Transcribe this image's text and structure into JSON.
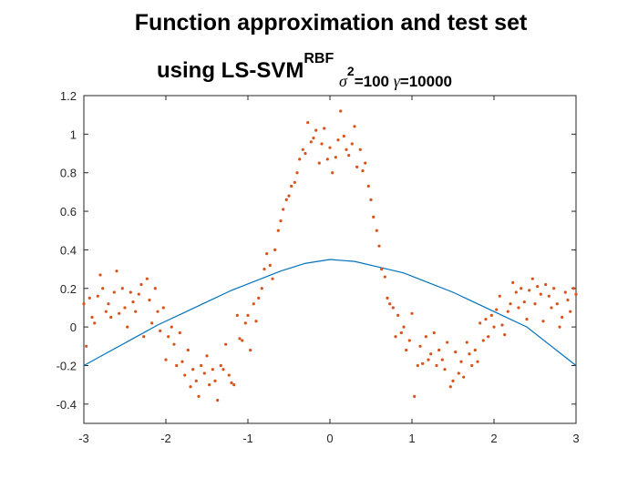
{
  "chart_data": {
    "type": "scatter",
    "title": {
      "line1": "Function approximation and test set",
      "line2_prefix": "using LS-SVM",
      "superscript": "RBF",
      "subscript_sigma": "σ",
      "subscript_sigma_exp": "2",
      "line2_suffix_a": "=100 ",
      "gamma": "γ",
      "line2_suffix_b": "=10000"
    },
    "xlabel": "",
    "ylabel": "",
    "xlim": [
      -3,
      3
    ],
    "ylim": [
      -0.5,
      1.2
    ],
    "x_ticks": [
      -3,
      -2,
      -1,
      0,
      1,
      2,
      3
    ],
    "x_tick_labels": [
      "-3",
      "-2",
      "-1",
      "0",
      "1",
      "2",
      "3"
    ],
    "y_ticks": [
      -0.4,
      -0.2,
      0,
      0.2,
      0.4,
      0.6,
      0.8,
      1,
      1.2
    ],
    "y_tick_labels": [
      "-0.4",
      "-0.2",
      "0",
      "0.2",
      "0.4",
      "0.6",
      "0.8",
      "1",
      "1.2"
    ],
    "grid": false,
    "colors": {
      "fit_line": "#0072BD",
      "points": "#D95319",
      "axes": "#262626"
    },
    "series": [
      {
        "kind": "line",
        "x": [
          -3,
          -2.7,
          -2.4,
          -2.1,
          -1.8,
          -1.5,
          -1.2,
          -0.9,
          -0.6,
          -0.3,
          0,
          0.3,
          0.6,
          0.9,
          1.2,
          1.5,
          1.8,
          2.1,
          2.4,
          2.7,
          3
        ],
        "y": [
          -0.2,
          -0.13,
          -0.06,
          0.01,
          0.07,
          0.13,
          0.19,
          0.24,
          0.29,
          0.33,
          0.35,
          0.34,
          0.31,
          0.28,
          0.23,
          0.18,
          0.12,
          0.06,
          0.0,
          -0.1,
          -0.2
        ]
      },
      {
        "kind": "scatter",
        "x": [
          -3.0,
          -2.97,
          -2.93,
          -2.9,
          -2.87,
          -2.83,
          -2.8,
          -2.77,
          -2.73,
          -2.7,
          -2.67,
          -2.63,
          -2.6,
          -2.57,
          -2.53,
          -2.5,
          -2.47,
          -2.43,
          -2.4,
          -2.37,
          -2.33,
          -2.3,
          -2.27,
          -2.23,
          -2.2,
          -2.17,
          -2.13,
          -2.1,
          -2.07,
          -2.03,
          -2.0,
          -1.97,
          -1.93,
          -1.9,
          -1.87,
          -1.83,
          -1.8,
          -1.77,
          -1.73,
          -1.7,
          -1.67,
          -1.63,
          -1.6,
          -1.57,
          -1.53,
          -1.5,
          -1.47,
          -1.43,
          -1.4,
          -1.37,
          -1.33,
          -1.3,
          -1.27,
          -1.23,
          -1.2,
          -1.17,
          -1.13,
          -1.1,
          -1.07,
          -1.03,
          -1.0,
          -0.97,
          -0.93,
          -0.9,
          -0.87,
          -0.83,
          -0.8,
          -0.77,
          -0.73,
          -0.7,
          -0.67,
          -0.63,
          -0.6,
          -0.57,
          -0.53,
          -0.5,
          -0.47,
          -0.43,
          -0.4,
          -0.37,
          -0.33,
          -0.3,
          -0.27,
          -0.23,
          -0.2,
          -0.17,
          -0.13,
          -0.1,
          -0.07,
          -0.03,
          0.0,
          0.03,
          0.07,
          0.1,
          0.13,
          0.17,
          0.2,
          0.23,
          0.27,
          0.3,
          0.33,
          0.37,
          0.4,
          0.43,
          0.47,
          0.5,
          0.53,
          0.57,
          0.6,
          0.63,
          0.67,
          0.7,
          0.73,
          0.77,
          0.8,
          0.83,
          0.87,
          0.9,
          0.93,
          0.97,
          1.0,
          1.03,
          1.07,
          1.1,
          1.13,
          1.17,
          1.2,
          1.23,
          1.27,
          1.3,
          1.33,
          1.37,
          1.4,
          1.43,
          1.47,
          1.5,
          1.53,
          1.57,
          1.6,
          1.63,
          1.67,
          1.7,
          1.73,
          1.77,
          1.8,
          1.83,
          1.87,
          1.9,
          1.93,
          1.97,
          2.0,
          2.03,
          2.07,
          2.1,
          2.13,
          2.17,
          2.2,
          2.23,
          2.27,
          2.3,
          2.33,
          2.37,
          2.4,
          2.43,
          2.47,
          2.5,
          2.53,
          2.57,
          2.6,
          2.63,
          2.67,
          2.7,
          2.73,
          2.77,
          2.8,
          2.83,
          2.87,
          2.9,
          2.93,
          2.97,
          3.0
        ],
        "y": [
          0.12,
          -0.1,
          0.15,
          0.05,
          0.02,
          0.16,
          0.27,
          0.2,
          0.08,
          0.12,
          0.05,
          0.18,
          0.29,
          0.07,
          0.2,
          0.1,
          0.0,
          0.18,
          0.13,
          0.08,
          0.17,
          0.22,
          -0.05,
          0.25,
          0.14,
          0.02,
          0.2,
          0.08,
          -0.02,
          0.1,
          -0.17,
          -0.05,
          0.0,
          -0.09,
          -0.2,
          -0.03,
          -0.18,
          -0.25,
          -0.12,
          -0.31,
          -0.22,
          -0.28,
          -0.36,
          -0.2,
          -0.24,
          -0.15,
          -0.3,
          -0.22,
          -0.28,
          -0.38,
          -0.2,
          -0.22,
          -0.09,
          -0.25,
          -0.29,
          -0.3,
          0.06,
          -0.06,
          -0.07,
          0.02,
          0.06,
          -0.12,
          0.12,
          0.03,
          0.15,
          0.2,
          0.3,
          0.38,
          0.32,
          0.25,
          0.4,
          0.5,
          0.55,
          0.61,
          0.66,
          0.68,
          0.73,
          0.75,
          0.8,
          0.87,
          0.92,
          0.9,
          1.06,
          0.96,
          0.98,
          1.02,
          0.85,
          0.95,
          1.03,
          0.87,
          0.93,
          0.8,
          0.88,
          0.97,
          1.12,
          0.99,
          0.92,
          0.89,
          0.95,
          1.04,
          0.83,
          0.92,
          0.81,
          0.85,
          0.73,
          0.66,
          0.57,
          0.5,
          0.42,
          0.3,
          0.26,
          0.15,
          0.12,
          0.1,
          -0.05,
          0.06,
          -0.03,
          0.0,
          -0.12,
          -0.07,
          0.07,
          -0.36,
          -0.2,
          -0.1,
          -0.19,
          -0.05,
          -0.17,
          -0.14,
          -0.03,
          -0.2,
          -0.12,
          -0.17,
          -0.22,
          -0.08,
          -0.31,
          -0.28,
          -0.13,
          -0.24,
          -0.18,
          -0.26,
          -0.08,
          -0.14,
          -0.2,
          -0.12,
          -0.18,
          0.02,
          -0.07,
          0.04,
          -0.05,
          0.06,
          0.0,
          0.09,
          0.16,
          0.01,
          -0.04,
          0.08,
          0.12,
          0.23,
          0.18,
          0.1,
          0.2,
          0.13,
          0.04,
          0.19,
          0.25,
          0.12,
          0.21,
          0.17,
          0.03,
          0.22,
          0.16,
          0.1,
          0.2,
          0.12,
          0.0,
          0.05,
          0.18,
          0.14,
          0.08,
          0.2,
          0.17
        ]
      }
    ]
  }
}
